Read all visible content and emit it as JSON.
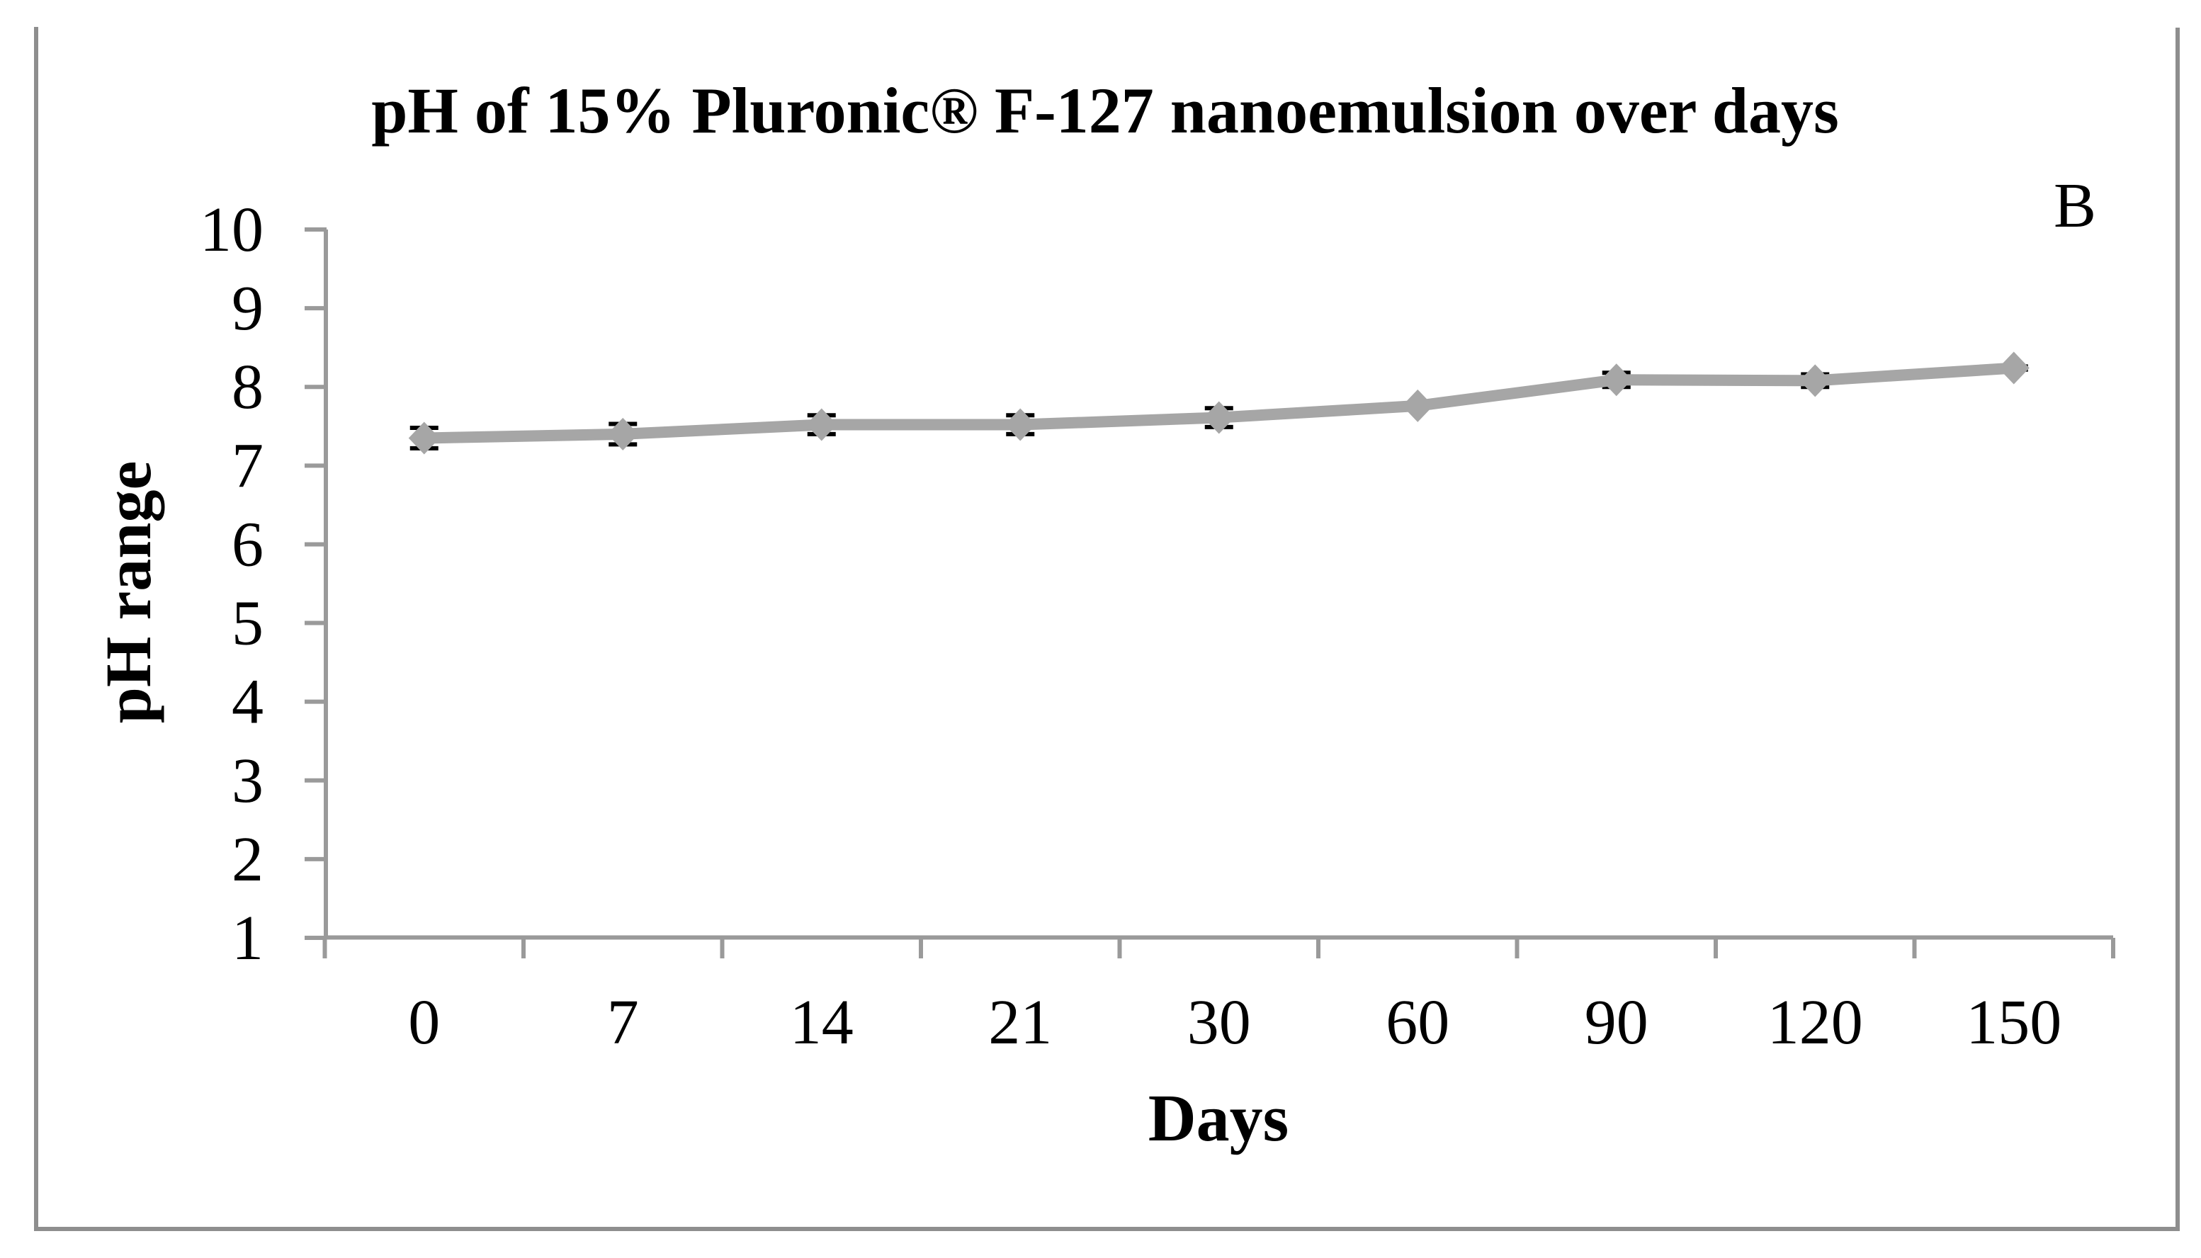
{
  "figure": {
    "panel_label": "B",
    "background": "#ffffff",
    "border_color": "#8e8e8e"
  },
  "chart_data": {
    "type": "line",
    "title": "pH of 15% Pluronic® F-127 nanoemulsion over days",
    "xlabel": "Days",
    "ylabel": "pH range",
    "categories": [
      "0",
      "7",
      "14",
      "21",
      "30",
      "60",
      "90",
      "120",
      "150"
    ],
    "series": [
      {
        "name": "pH",
        "values": [
          7.35,
          7.4,
          7.52,
          7.52,
          7.61,
          7.76,
          8.09,
          8.08,
          8.24
        ],
        "errors": [
          0.13,
          0.13,
          0.12,
          0.12,
          0.12,
          0.02,
          0.09,
          0.08,
          0.02
        ],
        "color": "#a6a6a6",
        "marker": "diamond",
        "error_color": "#000000"
      }
    ],
    "ylim": [
      1,
      10
    ],
    "yticks": [
      1,
      2,
      3,
      4,
      5,
      6,
      7,
      8,
      9,
      10
    ],
    "grid": false,
    "legend": "none",
    "axis_color": "#9a9a9a",
    "text_color": "#000000"
  }
}
